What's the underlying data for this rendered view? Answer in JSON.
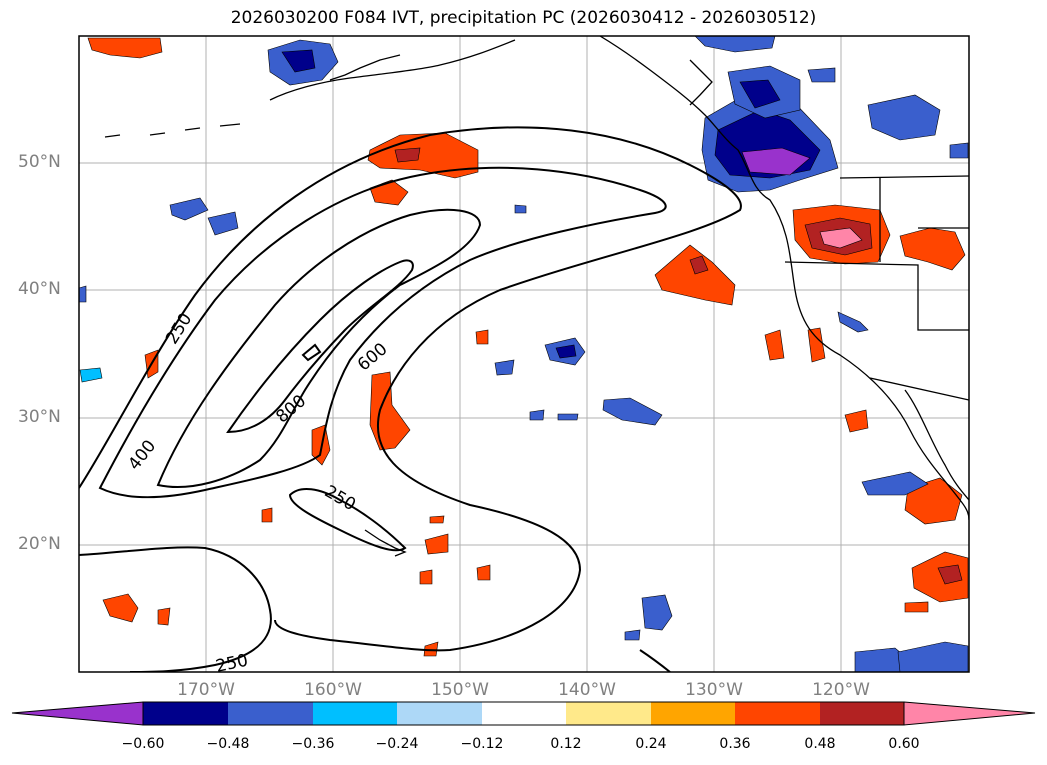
{
  "title": "2026030200 F084 IVT, precipitation PC (2026030412 - 2026030512)",
  "lat_labels": [
    "50°N",
    "40°N",
    "30°N",
    "20°N"
  ],
  "lon_labels": [
    "170°W",
    "160°W",
    "150°W",
    "140°W",
    "130°W",
    "120°W"
  ],
  "contour_labels": [
    "250",
    "400",
    "600",
    "800",
    "250",
    "250"
  ],
  "colorbar": {
    "ticks": [
      "−0.60",
      "−0.48",
      "−0.36",
      "−0.24",
      "−0.12",
      "0.12",
      "0.24",
      "0.36",
      "0.48",
      "0.60"
    ],
    "colors": [
      "#9932cc",
      "#00008b",
      "#3a5fcd",
      "#00bfff",
      "#add8f7",
      "#ffffff",
      "#ffe98a",
      "#ffa500",
      "#ff4500",
      "#b22222",
      "#ff85a8"
    ]
  },
  "colors": {
    "grid": "#b0b0b0",
    "contour": "#000000"
  }
}
